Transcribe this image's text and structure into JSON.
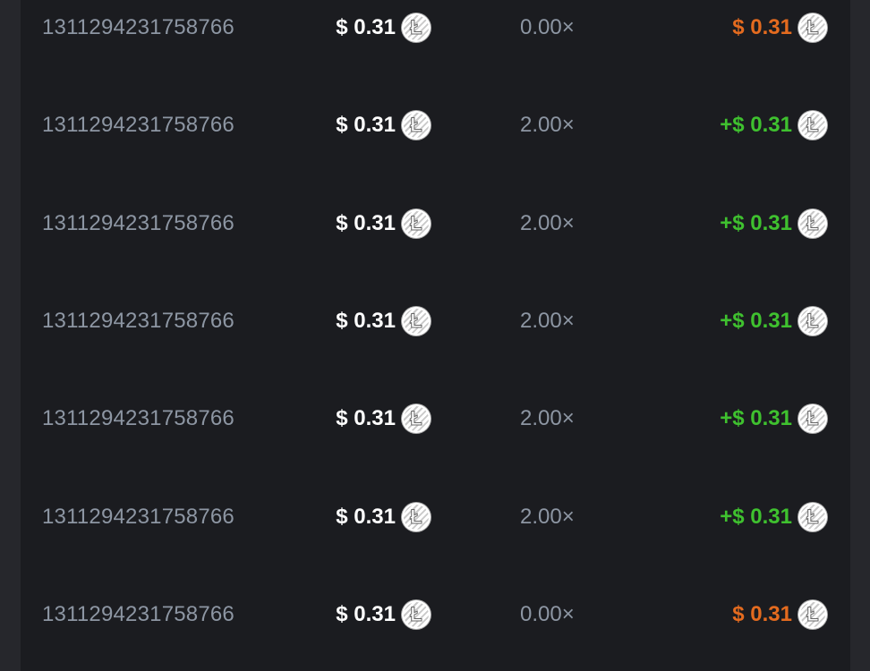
{
  "colors": {
    "win": "#3fc12f",
    "loss": "#e46b1f"
  },
  "currency_icon": "litecoin-icon",
  "coin_glyph": "Ł",
  "rows": [
    {
      "id": "1311294231758766",
      "bet": "$ 0.31",
      "multiplier": "0.00×",
      "payout": "$ 0.31",
      "status": "loss"
    },
    {
      "id": "1311294231758766",
      "bet": "$ 0.31",
      "multiplier": "2.00×",
      "payout": "+$ 0.31",
      "status": "win"
    },
    {
      "id": "1311294231758766",
      "bet": "$ 0.31",
      "multiplier": "2.00×",
      "payout": "+$ 0.31",
      "status": "win"
    },
    {
      "id": "1311294231758766",
      "bet": "$ 0.31",
      "multiplier": "2.00×",
      "payout": "+$ 0.31",
      "status": "win"
    },
    {
      "id": "1311294231758766",
      "bet": "$ 0.31",
      "multiplier": "2.00×",
      "payout": "+$ 0.31",
      "status": "win"
    },
    {
      "id": "1311294231758766",
      "bet": "$ 0.31",
      "multiplier": "2.00×",
      "payout": "+$ 0.31",
      "status": "win"
    },
    {
      "id": "1311294231758766",
      "bet": "$ 0.31",
      "multiplier": "0.00×",
      "payout": "$ 0.31",
      "status": "loss"
    }
  ]
}
